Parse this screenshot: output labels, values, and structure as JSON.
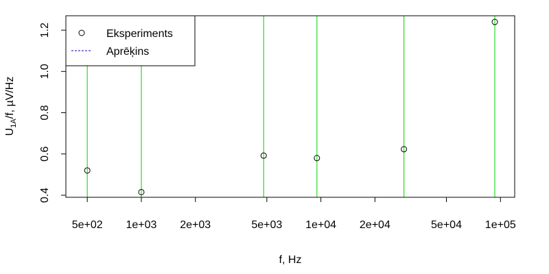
{
  "chart_data": {
    "type": "scatter",
    "x_scale": "log",
    "xlabel": "f, Hz",
    "ylabel": "U1A/f, µV/Hz",
    "ylabel_parts": {
      "base": "U",
      "subscript": "1A",
      "rest": "/f, µV/Hz"
    },
    "xlim": [
      380,
      120000
    ],
    "ylim": [
      0.39,
      1.27
    ],
    "x_ticks": [
      {
        "value": 500,
        "label": "5e+02"
      },
      {
        "value": 1000,
        "label": "1e+03"
      },
      {
        "value": 2000,
        "label": "2e+03"
      },
      {
        "value": 5000,
        "label": "5e+03"
      },
      {
        "value": 10000,
        "label": "1e+04"
      },
      {
        "value": 20000,
        "label": "2e+04"
      },
      {
        "value": 50000,
        "label": "5e+04"
      },
      {
        "value": 100000,
        "label": "1e+05"
      }
    ],
    "y_ticks": [
      {
        "value": 0.4,
        "label": "0.4"
      },
      {
        "value": 0.6,
        "label": "0.6"
      },
      {
        "value": 0.8,
        "label": "0.8"
      },
      {
        "value": 1.0,
        "label": "1.0"
      },
      {
        "value": 1.2,
        "label": "1.2"
      }
    ],
    "series": [
      {
        "name": "Eksperiments",
        "style": "points",
        "x": [
          500,
          1000,
          4800,
          9500,
          29000,
          93000
        ],
        "y": [
          0.52,
          0.415,
          0.592,
          0.58,
          0.623,
          1.24
        ]
      },
      {
        "name": "Aprēķins",
        "style": "dashed-line",
        "x": [],
        "y": []
      }
    ],
    "reference_lines_x": [
      500,
      1000,
      4800,
      9500,
      29000,
      93000
    ],
    "legend_position": "top-left",
    "grid": false
  },
  "colors": {
    "points": "#000000",
    "reference_lines": "#22dd22",
    "calc_line": "#0000aa",
    "axis": "#000000"
  }
}
